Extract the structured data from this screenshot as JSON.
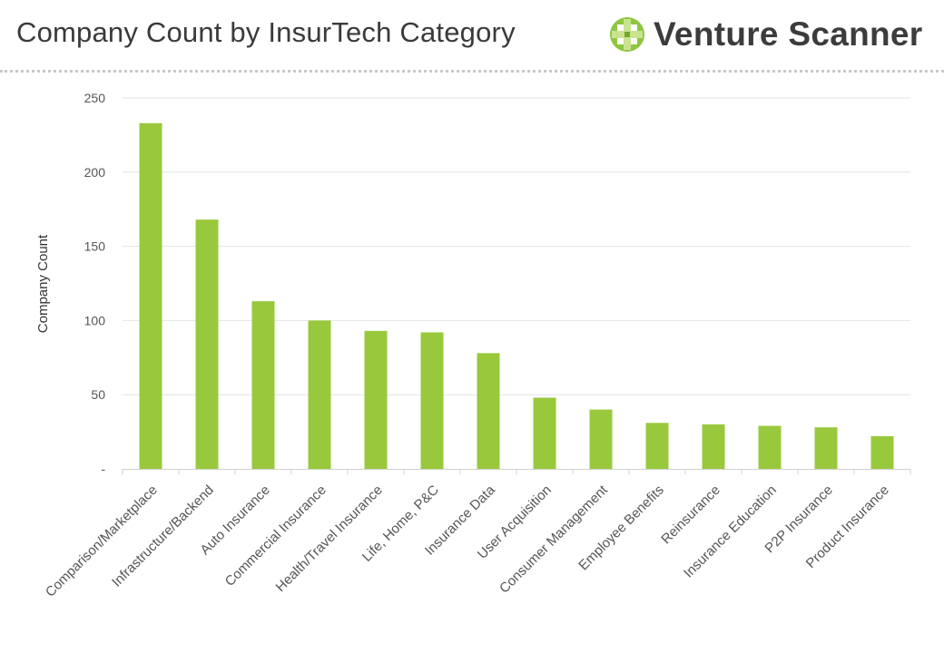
{
  "header": {
    "title": "Company Count by InsurTech Category",
    "brand_name": "Venture Scanner",
    "brand_color": "#8dc63f",
    "brand_icon": "venture-scanner-logo-icon"
  },
  "chart_data": {
    "type": "bar",
    "title": "Company Count by InsurTech Category",
    "xlabel": "",
    "ylabel": "Company Count",
    "ylim": [
      0,
      250
    ],
    "yticks": [
      0,
      50,
      100,
      150,
      200,
      250
    ],
    "ytick_labels": [
      "-",
      "50",
      "100",
      "150",
      "200",
      "250"
    ],
    "grid": true,
    "bar_color": "#98c93c",
    "categories": [
      "Comparison/Marketplace",
      "Infrastructure/Backend",
      "Auto Insurance",
      "Commercial Insurance",
      "Health/Travel Insurance",
      "Life, Home, P&C",
      "Insurance Data",
      "User Acquisition",
      "Consumer Management",
      "Employee Benefits",
      "Reinsurance",
      "Insurance Education",
      "P2P Insurance",
      "Product Insurance"
    ],
    "values": [
      233,
      168,
      113,
      100,
      93,
      92,
      78,
      48,
      40,
      31,
      30,
      29,
      28,
      22
    ]
  }
}
